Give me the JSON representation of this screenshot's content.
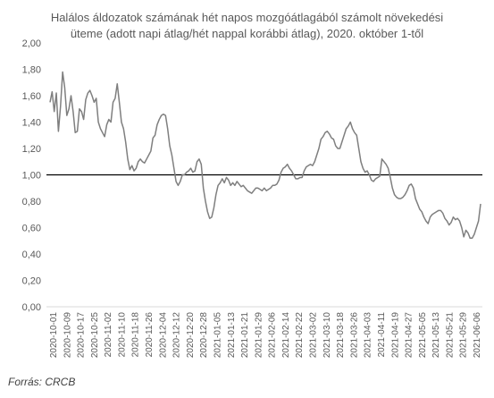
{
  "chart_data": {
    "type": "line",
    "title": [
      "Halálos áldozatok számának hét napos mozgóátlagából számolt növekedési",
      "üteme (adott napi átlag/hét nappal korábbi átlag), 2020. október 1-től"
    ],
    "xlabel": "",
    "ylabel": "",
    "ylim": [
      0,
      2
    ],
    "y_ticks": [
      "0,00",
      "0,20",
      "0,40",
      "0,60",
      "0,80",
      "1,00",
      "1,20",
      "1,40",
      "1,60",
      "1,80",
      "2,00"
    ],
    "x_ticks": [
      "2020-10-01",
      "2020-10-09",
      "2020-10-17",
      "2020-10-25",
      "2020-11-02",
      "2020-11-10",
      "2020-11-18",
      "2020-11-26",
      "2020-12-04",
      "2020-12-12",
      "2020-12-20",
      "2020-12-28",
      "2021-01-05",
      "2021-01-13",
      "2021-01-21",
      "2021-01-29",
      "2021-02-06",
      "2021-02-14",
      "2021-02-22",
      "2021-03-02",
      "2021-03-10",
      "2021-03-18",
      "2021-03-26",
      "2021-04-03",
      "2021-04-11",
      "2021-04-19",
      "2021-04-27",
      "2021-05-05",
      "2021-05-13",
      "2021-05-21",
      "2021-05-29",
      "2021-06-06"
    ],
    "reference_line": 1.0,
    "grid": false,
    "series_color": "#7f7f7f",
    "series": [
      {
        "values": [
          1.55,
          1.63,
          1.48,
          1.62,
          1.33,
          1.52,
          1.78,
          1.66,
          1.45,
          1.5,
          1.6,
          1.48,
          1.32,
          1.33,
          1.5,
          1.48,
          1.42,
          1.57,
          1.62,
          1.64,
          1.6,
          1.55,
          1.58,
          1.4,
          1.35,
          1.32,
          1.29,
          1.38,
          1.42,
          1.4,
          1.55,
          1.58,
          1.69,
          1.55,
          1.4,
          1.35,
          1.25,
          1.12,
          1.04,
          1.07,
          1.03,
          1.05,
          1.1,
          1.12,
          1.1,
          1.09,
          1.12,
          1.15,
          1.18,
          1.28,
          1.3,
          1.38,
          1.42,
          1.45,
          1.46,
          1.45,
          1.35,
          1.22,
          1.15,
          1.05,
          0.95,
          0.92,
          0.95,
          1.0,
          1.0,
          1.02,
          1.03,
          1.05,
          1.02,
          1.03,
          1.1,
          1.12,
          1.08,
          0.9,
          0.8,
          0.72,
          0.67,
          0.68,
          0.75,
          0.85,
          0.92,
          0.94,
          0.97,
          0.94,
          0.98,
          0.96,
          0.92,
          0.94,
          0.92,
          0.95,
          0.93,
          0.91,
          0.92,
          0.9,
          0.88,
          0.87,
          0.86,
          0.88,
          0.9,
          0.9,
          0.89,
          0.88,
          0.9,
          0.88,
          0.89,
          0.9,
          0.92,
          0.92,
          0.93,
          0.96,
          1.02,
          1.05,
          1.06,
          1.08,
          1.05,
          1.03,
          1.0,
          0.97,
          0.97,
          0.98,
          0.98,
          1.03,
          1.06,
          1.07,
          1.08,
          1.07,
          1.1,
          1.15,
          1.2,
          1.27,
          1.29,
          1.32,
          1.33,
          1.31,
          1.28,
          1.27,
          1.22,
          1.2,
          1.2,
          1.25,
          1.3,
          1.35,
          1.37,
          1.4,
          1.35,
          1.32,
          1.3,
          1.2,
          1.1,
          1.05,
          1.02,
          1.03,
          1.0,
          0.96,
          0.95,
          0.97,
          0.98,
          0.99,
          1.12,
          1.1,
          1.08,
          1.05,
          0.98,
          0.9,
          0.85,
          0.83,
          0.82,
          0.82,
          0.83,
          0.85,
          0.88,
          0.92,
          0.93,
          0.9,
          0.82,
          0.78,
          0.74,
          0.72,
          0.68,
          0.65,
          0.63,
          0.68,
          0.7,
          0.71,
          0.72,
          0.73,
          0.73,
          0.71,
          0.67,
          0.65,
          0.62,
          0.64,
          0.68,
          0.66,
          0.67,
          0.65,
          0.6,
          0.53,
          0.58,
          0.56,
          0.52,
          0.52,
          0.55,
          0.6,
          0.65,
          0.78
        ]
      }
    ]
  },
  "source_note": "Forrás: CRCB"
}
